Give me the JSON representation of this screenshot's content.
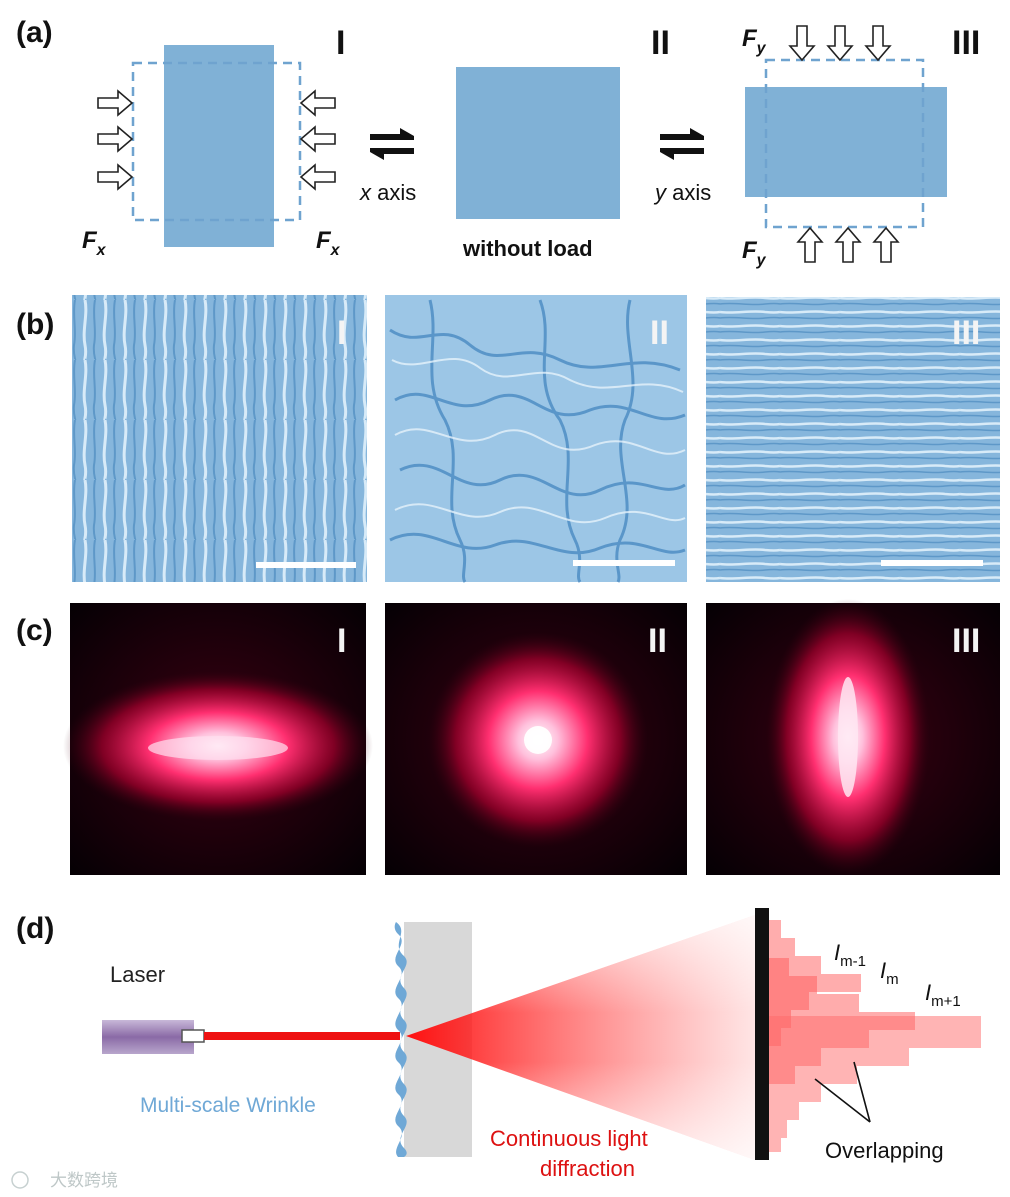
{
  "panels": {
    "a": {
      "letter": "(a)",
      "states": [
        "I",
        "II",
        "III"
      ],
      "force_x": "F",
      "force_x_sub": "x",
      "force_y": "F",
      "force_y_sub": "y",
      "axis_x_var": "x",
      "axis_x_word": " axis",
      "axis_y_var": "y",
      "axis_y_word": " axis",
      "center_caption": "without load",
      "fill_color": "#80b1d6",
      "dash_color": "#6fa3cf"
    },
    "b": {
      "letter": "(b)",
      "states": [
        "I",
        "II",
        "III"
      ],
      "wrinkle_color": "#8ab9de"
    },
    "c": {
      "letter": "(c)",
      "states": [
        "I",
        "II",
        "III"
      ],
      "glow_color": "#ff2a6a"
    },
    "d": {
      "letter": "(d)",
      "laser_label": "Laser",
      "wrinkle_label": "Multi-scale Wrinkle",
      "diffraction_label_line1": "Continuous light",
      "diffraction_label_line2": "diffraction",
      "intensity_var": "I",
      "intensity_labels": [
        "m-1",
        "m",
        "m+1"
      ],
      "overlap_label": "Overlapping",
      "beam_color": "#ee1111",
      "wrinkle_text_color": "#6fa8d6",
      "diffraction_text_color": "#dd1111"
    }
  },
  "watermark": "大数跨境"
}
